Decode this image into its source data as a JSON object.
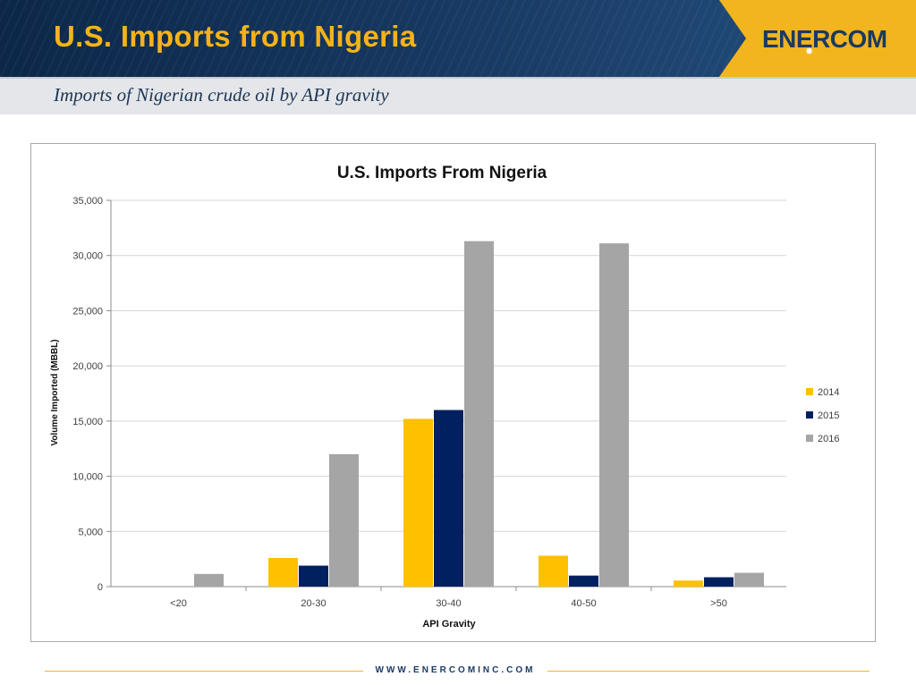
{
  "slide": {
    "title": "U.S. Imports from Nigeria",
    "subtitle": "Imports of Nigerian crude oil by API gravity",
    "logo": "ENERCOM",
    "footer_url": "WWW.ENERCOMINC.COM",
    "colors": {
      "header": "#16375f",
      "accent": "#f2b51d",
      "band": "#e4e6e9"
    }
  },
  "chart_data": {
    "type": "bar",
    "title": "U.S. Imports From Nigeria",
    "xlabel": "API Gravity",
    "ylabel": "Volume Imported (MBBL)",
    "categories": [
      "<20",
      "20-30",
      "30-40",
      "40-50",
      ">50"
    ],
    "series": [
      {
        "name": "2014",
        "color": "#ffc000",
        "values": [
          0,
          2600,
          15200,
          2800,
          550
        ]
      },
      {
        "name": "2015",
        "color": "#002060",
        "values": [
          0,
          1900,
          16000,
          1000,
          850
        ]
      },
      {
        "name": "2016",
        "color": "#a5a5a5",
        "values": [
          1150,
          12000,
          31300,
          31100,
          1250
        ]
      }
    ],
    "ylim": [
      0,
      35000
    ],
    "yticks": [
      0,
      5000,
      10000,
      15000,
      20000,
      25000,
      30000,
      35000
    ],
    "ytick_labels": [
      "0",
      "5,000",
      "10,000",
      "15,000",
      "20,000",
      "25,000",
      "30,000",
      "35,000"
    ],
    "grid": true,
    "legend_position": "right"
  }
}
